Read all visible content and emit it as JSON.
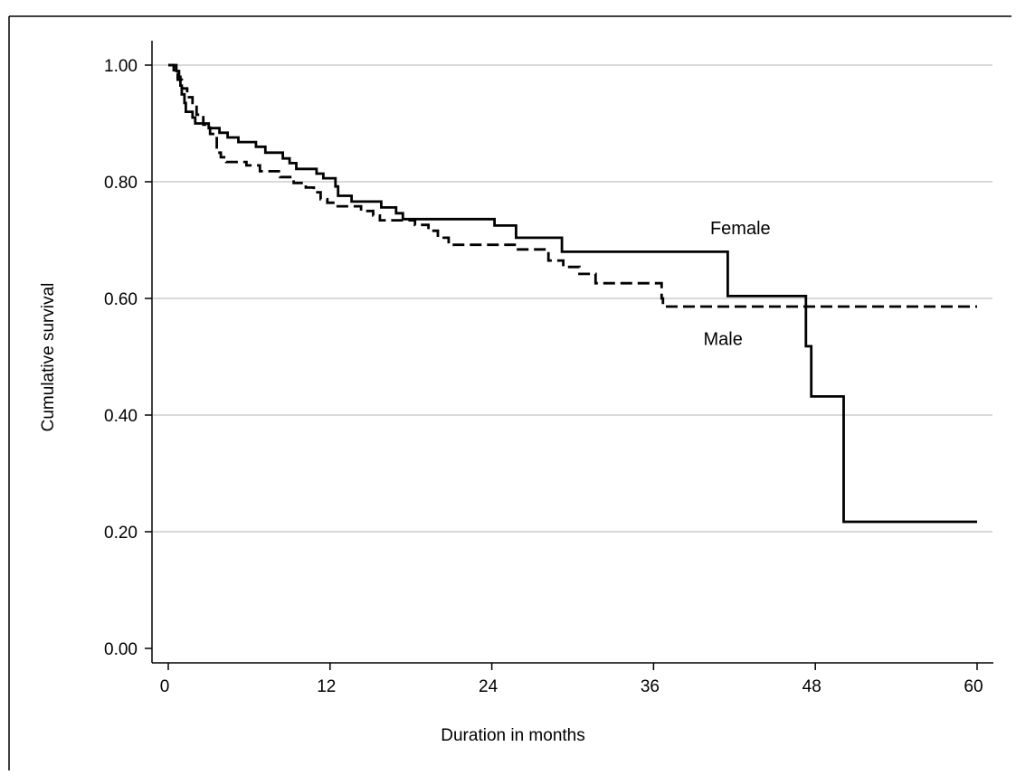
{
  "chart_data": {
    "type": "line",
    "title": "",
    "xlabel": "Duration in months",
    "ylabel": "Cumulative survival",
    "xlim": [
      0,
      60
    ],
    "ylim": [
      0,
      1
    ],
    "x_ticks": [
      0,
      12,
      24,
      36,
      48,
      60
    ],
    "x_tick_labels": [
      "0",
      "12",
      "24",
      "36",
      "48",
      "60"
    ],
    "y_ticks": [
      0,
      0.2,
      0.4,
      0.6,
      0.8,
      1.0
    ],
    "y_tick_labels": [
      "0.00",
      "0.20",
      "0.40",
      "0.60",
      "0.80",
      "1.00"
    ],
    "grid": "horizontal",
    "colors": {
      "grid": "#d9d9d9",
      "line": "#000000",
      "axis": "#000000"
    },
    "series": [
      {
        "name": "Female",
        "style": "solid",
        "steps": [
          [
            0.0,
            1.0
          ],
          [
            0.6,
            0.99
          ],
          [
            0.8,
            0.98
          ],
          [
            0.9,
            0.965
          ],
          [
            1.0,
            0.95
          ],
          [
            1.2,
            0.935
          ],
          [
            1.3,
            0.92
          ],
          [
            1.8,
            0.91
          ],
          [
            2.0,
            0.9
          ],
          [
            3.0,
            0.892
          ],
          [
            3.8,
            0.884
          ],
          [
            4.4,
            0.876
          ],
          [
            5.2,
            0.868
          ],
          [
            6.5,
            0.86
          ],
          [
            7.2,
            0.85
          ],
          [
            8.5,
            0.84
          ],
          [
            9.0,
            0.832
          ],
          [
            9.5,
            0.822
          ],
          [
            11.0,
            0.814
          ],
          [
            11.5,
            0.806
          ],
          [
            12.4,
            0.792
          ],
          [
            12.6,
            0.776
          ],
          [
            13.6,
            0.766
          ],
          [
            15.8,
            0.756
          ],
          [
            16.9,
            0.746
          ],
          [
            17.4,
            0.736
          ],
          [
            24.2,
            0.725
          ],
          [
            25.8,
            0.704
          ],
          [
            29.2,
            0.68
          ],
          [
            41.5,
            0.604
          ],
          [
            47.3,
            0.518
          ],
          [
            47.7,
            0.432
          ],
          [
            50.1,
            0.217
          ],
          [
            60.0,
            0.217
          ]
        ]
      },
      {
        "name": "Male",
        "style": "dashed",
        "steps": [
          [
            0.0,
            1.0
          ],
          [
            0.4,
            0.985
          ],
          [
            0.7,
            0.975
          ],
          [
            1.0,
            0.96
          ],
          [
            1.4,
            0.945
          ],
          [
            1.8,
            0.935
          ],
          [
            2.1,
            0.915
          ],
          [
            2.6,
            0.898
          ],
          [
            3.1,
            0.882
          ],
          [
            3.6,
            0.85
          ],
          [
            3.9,
            0.842
          ],
          [
            4.3,
            0.834
          ],
          [
            5.8,
            0.828
          ],
          [
            6.8,
            0.818
          ],
          [
            8.3,
            0.808
          ],
          [
            9.3,
            0.798
          ],
          [
            10.2,
            0.79
          ],
          [
            10.8,
            0.782
          ],
          [
            11.3,
            0.77
          ],
          [
            11.8,
            0.764
          ],
          [
            12.4,
            0.758
          ],
          [
            14.3,
            0.75
          ],
          [
            15.2,
            0.742
          ],
          [
            15.7,
            0.734
          ],
          [
            18.3,
            0.726
          ],
          [
            19.3,
            0.716
          ],
          [
            20.0,
            0.704
          ],
          [
            20.8,
            0.692
          ],
          [
            25.8,
            0.684
          ],
          [
            28.2,
            0.665
          ],
          [
            29.3,
            0.654
          ],
          [
            30.5,
            0.642
          ],
          [
            31.7,
            0.626
          ],
          [
            36.6,
            0.6
          ],
          [
            36.7,
            0.586
          ],
          [
            60.0,
            0.586
          ]
        ]
      }
    ],
    "annotations": [
      {
        "text": "Female",
        "x": 40.2,
        "y": 0.71
      },
      {
        "text": "Male",
        "x": 39.7,
        "y": 0.52
      }
    ]
  }
}
